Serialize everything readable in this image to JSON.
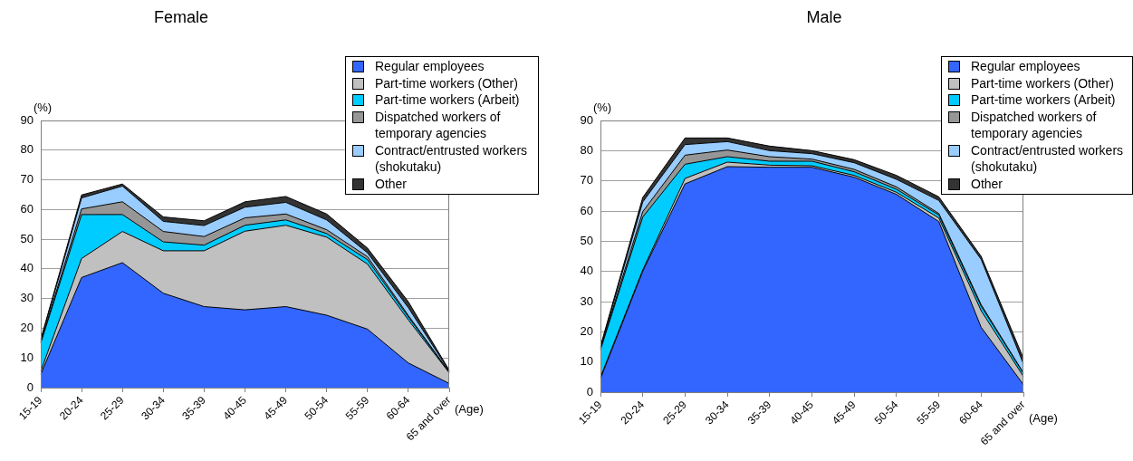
{
  "chart_data": [
    {
      "type": "area",
      "title": "Female",
      "xlabel": "(Age)",
      "ylabel": "(%)",
      "stacked": true,
      "grid": "y",
      "legend": "top right",
      "categories": [
        "15-19",
        "20-24",
        "25-29",
        "30-34",
        "35-39",
        "40-45",
        "45-49",
        "50-54",
        "55-59",
        "60-64",
        "65 and over"
      ],
      "ylim": [
        0,
        90
      ],
      "yticks": [
        0,
        10,
        20,
        30,
        40,
        50,
        60,
        70,
        80,
        90
      ],
      "series": [
        {
          "name": "Regular employees",
          "color": "#3366ff",
          "values": [
            4.5,
            37.1,
            42.1,
            31.8,
            27.3,
            26.2,
            27.3,
            24.4,
            19.7,
            8.3,
            1.4
          ]
        },
        {
          "name": "Part-time workers (Other)",
          "color": "#c0c0c0",
          "values": [
            1.0,
            6.4,
            10.5,
            14.3,
            18.8,
            26.5,
            27.4,
            26.3,
            21.9,
            14.5,
            3.6
          ]
        },
        {
          "name": "Part-time workers (Arbeit)",
          "color": "#00ccff",
          "values": [
            9.5,
            14.8,
            5.7,
            3.0,
            1.9,
            2.0,
            1.8,
            1.2,
            1.5,
            1.0,
            0.2
          ]
        },
        {
          "name": "Dispatched workers of temporary agencies",
          "color": "#969696",
          "values": [
            0.3,
            1.9,
            4.3,
            3.5,
            2.9,
            2.5,
            2.0,
            1.3,
            1.0,
            0.5,
            0.1
          ]
        },
        {
          "name": "Contract/entrusted workers (shokutaku)",
          "color": "#99ccff",
          "values": [
            0.5,
            3.7,
            5.3,
            3.4,
            3.7,
            3.6,
            3.9,
            3.3,
            1.3,
            2.6,
            0.3
          ]
        },
        {
          "name": "Other",
          "color": "#333333",
          "values": [
            0.5,
            1.0,
            0.7,
            1.5,
            1.6,
            1.8,
            2.0,
            2.0,
            1.6,
            2.0,
            0.3
          ]
        }
      ]
    },
    {
      "type": "area",
      "title": "Male",
      "xlabel": "(Age)",
      "ylabel": "(%)",
      "stacked": true,
      "grid": "y",
      "legend": "top right",
      "categories": [
        "15-19",
        "20-24",
        "25-29",
        "30-34",
        "35-39",
        "40-45",
        "45-49",
        "50-54",
        "55-59",
        "60-64",
        "65 and over"
      ],
      "ylim": [
        0,
        90
      ],
      "yticks": [
        0,
        10,
        20,
        30,
        40,
        50,
        60,
        70,
        80,
        90
      ],
      "series": [
        {
          "name": "Regular employees",
          "color": "#3366ff",
          "values": [
            4.5,
            40.0,
            69.0,
            74.7,
            74.5,
            74.5,
            71.2,
            65.5,
            56.5,
            21.5,
            2.5
          ]
        },
        {
          "name": "Part-time workers (Other)",
          "color": "#c0c0c0",
          "values": [
            0.5,
            0.5,
            1.8,
            1.5,
            0.7,
            0.5,
            0.6,
            0.7,
            1.2,
            5.5,
            2.7
          ]
        },
        {
          "name": "Part-time workers (Arbeit)",
          "color": "#00ccff",
          "values": [
            9.0,
            17.5,
            4.7,
            1.8,
            1.3,
            1.5,
            1.2,
            1.0,
            1.0,
            1.5,
            1.0
          ]
        },
        {
          "name": "Dispatched workers of temporary agencies",
          "color": "#969696",
          "values": [
            0.3,
            1.8,
            3.0,
            2.2,
            1.5,
            0.7,
            0.8,
            0.8,
            0.5,
            0.5,
            0.2
          ]
        },
        {
          "name": "Contract/entrusted workers (shokutaku)",
          "color": "#99ccff",
          "values": [
            0.4,
            3.2,
            3.5,
            2.8,
            2.0,
            1.8,
            2.2,
            2.5,
            4.3,
            15.0,
            3.0
          ]
        },
        {
          "name": "Other",
          "color": "#333333",
          "values": [
            0.5,
            1.5,
            2.2,
            1.2,
            1.5,
            1.0,
            1.0,
            1.3,
            1.2,
            1.0,
            1.8
          ]
        }
      ]
    }
  ]
}
